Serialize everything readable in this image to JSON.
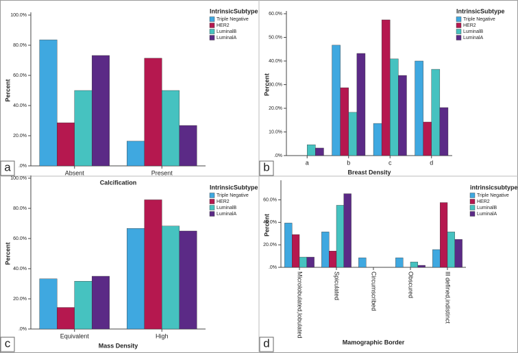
{
  "chart_data": [
    {
      "type": "bar",
      "panel_label": "a",
      "x_label": "Calcification",
      "y_label": "Percent",
      "legend_title": "IntrinsicSubtype",
      "categories": [
        "Absent",
        "Present"
      ],
      "series": [
        {
          "name": "Triple Negative",
          "color": "#3fa8e0",
          "values": [
            83.6,
            16.4
          ]
        },
        {
          "name": "HER2",
          "color": "#b5184f",
          "values": [
            28.6,
            71.4
          ]
        },
        {
          "name": "LuminalB",
          "color": "#46c2c0",
          "values": [
            50,
            50
          ]
        },
        {
          "name": "LuminalA",
          "color": "#5b2a86",
          "values": [
            73.2,
            26.8
          ]
        }
      ],
      "ylim": [
        0,
        100
      ],
      "yticks": [
        {
          "value": 0,
          "label": ".0%"
        },
        {
          "value": 20,
          "label": "20.0%"
        },
        {
          "value": 40,
          "label": "40.0%"
        },
        {
          "value": 60,
          "label": "60.0%"
        },
        {
          "value": 80,
          "label": "80.0%"
        },
        {
          "value": 100,
          "label": "100.0%"
        }
      ]
    },
    {
      "type": "bar",
      "panel_label": "b",
      "x_label": "Breast Density",
      "y_label": "Percent",
      "legend_title": "IntrinsicSubtype",
      "categories": [
        "a",
        "b",
        "c",
        "d"
      ],
      "series": [
        {
          "name": "Triple Negative",
          "color": "#3fa8e0",
          "values": [
            0,
            46.7,
            13.6,
            40.0
          ]
        },
        {
          "name": "HER2",
          "color": "#b5184f",
          "values": [
            0,
            28.7,
            57.4,
            14.2
          ]
        },
        {
          "name": "LuminalB",
          "color": "#46c2c0",
          "values": [
            4.6,
            18.3,
            40.9,
            36.5
          ]
        },
        {
          "name": "LuminalA",
          "color": "#5b2a86",
          "values": [
            3.2,
            43.2,
            33.9,
            20.3
          ]
        }
      ],
      "ylim": [
        0,
        60
      ],
      "yticks": [
        {
          "value": 0,
          "label": ".0%"
        },
        {
          "value": 10,
          "label": "10.0%"
        },
        {
          "value": 20,
          "label": "20.0%"
        },
        {
          "value": 30,
          "label": "30.0%"
        },
        {
          "value": 40,
          "label": "40.0%"
        },
        {
          "value": 50,
          "label": "50.0%"
        },
        {
          "value": 60,
          "label": "60.0%"
        }
      ]
    },
    {
      "type": "bar",
      "panel_label": "c",
      "x_label": "Mass Density",
      "y_label": "Percent",
      "legend_title": "IntrinsicSubtype",
      "categories": [
        "Equivalent",
        "High"
      ],
      "series": [
        {
          "name": "Triple Negative",
          "color": "#3fa8e0",
          "values": [
            33.3,
            66.7
          ]
        },
        {
          "name": "HER2",
          "color": "#b5184f",
          "values": [
            14.3,
            85.7
          ]
        },
        {
          "name": "LuminalB",
          "color": "#46c2c0",
          "values": [
            31.7,
            68.3
          ]
        },
        {
          "name": "LuminalA",
          "color": "#5b2a86",
          "values": [
            35.0,
            65.0
          ]
        }
      ],
      "ylim": [
        0,
        100
      ],
      "yticks": [
        {
          "value": 0,
          "label": ".0%"
        },
        {
          "value": 20,
          "label": "20.0%"
        },
        {
          "value": 40,
          "label": "40.0%"
        },
        {
          "value": 60,
          "label": "60.0%"
        },
        {
          "value": 80,
          "label": "80.0%"
        },
        {
          "value": 100,
          "label": "100.0%"
        }
      ]
    },
    {
      "type": "bar",
      "panel_label": "d",
      "x_label": "Mamographic Border",
      "y_label": "Percent",
      "legend_title": "intrinsicsubtype",
      "categories": [
        "Microlobulated,lobulated",
        "Spiculated",
        "Circumscribed",
        "Obscured",
        "Ill defined,indistinct"
      ],
      "series": [
        {
          "name": "Triple Negative",
          "color": "#3fa8e0",
          "values": [
            39.4,
            31.5,
            8.5,
            8.5,
            15.8
          ]
        },
        {
          "name": "HER2",
          "color": "#b5184f",
          "values": [
            29.1,
            14.5,
            0,
            0,
            57.6
          ]
        },
        {
          "name": "LuminalB",
          "color": "#46c2c0",
          "values": [
            9.1,
            55.2,
            0,
            4.8,
            31.5
          ]
        },
        {
          "name": "LuminalA",
          "color": "#5b2a86",
          "values": [
            9.1,
            65.5,
            0,
            1.8,
            24.8
          ]
        }
      ],
      "ylim": [
        0,
        75
      ],
      "yticks": [
        {
          "value": 0,
          "label": ".0%"
        },
        {
          "value": 20,
          "label": "20.0%"
        },
        {
          "value": 40,
          "label": "40.0%"
        },
        {
          "value": 60,
          "label": "60.0%"
        }
      ]
    }
  ]
}
